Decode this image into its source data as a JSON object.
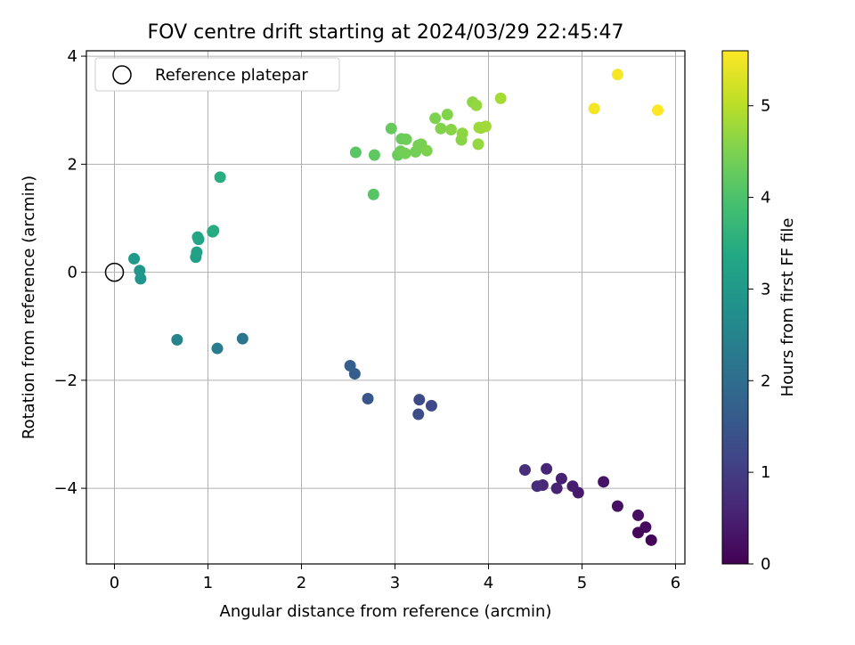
{
  "chart_data": {
    "type": "scatter",
    "title": "FOV centre drift starting at 2024/03/29 22:45:47",
    "xlabel": "Angular distance from reference (arcmin)",
    "ylabel": "Rotation from reference (arcmin)",
    "xlim": [
      -0.3,
      6.1
    ],
    "ylim": [
      -5.4,
      4.1
    ],
    "xticks": [
      0,
      1,
      2,
      3,
      4,
      5,
      6
    ],
    "yticks": [
      -4,
      -2,
      0,
      2,
      4
    ],
    "xtick_labels": [
      "0",
      "1",
      "2",
      "3",
      "4",
      "5",
      "6"
    ],
    "ytick_labels": [
      "−4",
      "−2",
      "0",
      "2",
      "4"
    ],
    "grid": true,
    "legend": {
      "placement": "top-left",
      "label": "Reference platepar"
    },
    "reference_point": {
      "x": 0,
      "y": 0
    },
    "colorbar": {
      "label": "Hours from first FF file",
      "colormap": "viridis",
      "range": [
        0,
        5.6
      ],
      "ticks": [
        0,
        1,
        2,
        3,
        4,
        5
      ],
      "tick_labels": [
        "0",
        "1",
        "2",
        "3",
        "4",
        "5"
      ]
    },
    "series": [
      {
        "points": [
          {
            "x": 5.74,
            "y": -4.96,
            "h": 0.05
          },
          {
            "x": 5.6,
            "y": -4.82,
            "h": 0.1
          },
          {
            "x": 5.68,
            "y": -4.72,
            "h": 0.15
          },
          {
            "x": 5.6,
            "y": -4.5,
            "h": 0.2
          },
          {
            "x": 5.38,
            "y": -4.33,
            "h": 0.25
          },
          {
            "x": 5.23,
            "y": -3.88,
            "h": 0.3
          },
          {
            "x": 4.96,
            "y": -4.08,
            "h": 0.4
          },
          {
            "x": 4.9,
            "y": -3.96,
            "h": 0.45
          },
          {
            "x": 4.78,
            "y": -3.82,
            "h": 0.5
          },
          {
            "x": 4.73,
            "y": -4.0,
            "h": 0.55
          },
          {
            "x": 4.62,
            "y": -3.64,
            "h": 0.6
          },
          {
            "x": 4.58,
            "y": -3.94,
            "h": 0.65
          },
          {
            "x": 4.52,
            "y": -3.96,
            "h": 0.7
          },
          {
            "x": 4.39,
            "y": -3.66,
            "h": 0.75
          },
          {
            "x": 3.39,
            "y": -2.47,
            "h": 1.2
          },
          {
            "x": 3.26,
            "y": -2.36,
            "h": 1.25
          },
          {
            "x": 3.25,
            "y": -2.63,
            "h": 1.3
          },
          {
            "x": 2.71,
            "y": -2.34,
            "h": 1.5
          },
          {
            "x": 2.57,
            "y": -1.88,
            "h": 1.65
          },
          {
            "x": 2.52,
            "y": -1.73,
            "h": 1.7
          },
          {
            "x": 1.37,
            "y": -1.23,
            "h": 2.2
          },
          {
            "x": 1.1,
            "y": -1.41,
            "h": 2.3
          },
          {
            "x": 0.67,
            "y": -1.25,
            "h": 2.5
          },
          {
            "x": 0.28,
            "y": -0.12,
            "h": 2.9
          },
          {
            "x": 0.27,
            "y": 0.03,
            "h": 2.95
          },
          {
            "x": 0.21,
            "y": 0.25,
            "h": 3.0
          },
          {
            "x": 0.87,
            "y": 0.28,
            "h": 3.15
          },
          {
            "x": 0.88,
            "y": 0.37,
            "h": 3.2
          },
          {
            "x": 0.9,
            "y": 0.61,
            "h": 3.25
          },
          {
            "x": 0.89,
            "y": 0.65,
            "h": 3.3
          },
          {
            "x": 1.05,
            "y": 0.75,
            "h": 3.4
          },
          {
            "x": 1.06,
            "y": 0.77,
            "h": 3.45
          },
          {
            "x": 1.13,
            "y": 1.76,
            "h": 3.5
          },
          {
            "x": 2.77,
            "y": 1.44,
            "h": 4.1
          },
          {
            "x": 2.58,
            "y": 2.22,
            "h": 4.15
          },
          {
            "x": 2.78,
            "y": 2.17,
            "h": 4.2
          },
          {
            "x": 2.96,
            "y": 2.66,
            "h": 4.25
          },
          {
            "x": 3.03,
            "y": 2.17,
            "h": 4.3
          },
          {
            "x": 3.07,
            "y": 2.47,
            "h": 4.3
          },
          {
            "x": 3.06,
            "y": 2.24,
            "h": 4.35
          },
          {
            "x": 3.12,
            "y": 2.46,
            "h": 4.35
          },
          {
            "x": 3.11,
            "y": 2.2,
            "h": 4.4
          },
          {
            "x": 3.22,
            "y": 2.23,
            "h": 4.4
          },
          {
            "x": 3.25,
            "y": 2.35,
            "h": 4.45
          },
          {
            "x": 3.28,
            "y": 2.37,
            "h": 4.45
          },
          {
            "x": 3.34,
            "y": 2.25,
            "h": 4.5
          },
          {
            "x": 3.43,
            "y": 2.85,
            "h": 4.5
          },
          {
            "x": 3.49,
            "y": 2.66,
            "h": 4.55
          },
          {
            "x": 3.56,
            "y": 2.92,
            "h": 4.55
          },
          {
            "x": 3.6,
            "y": 2.64,
            "h": 4.6
          },
          {
            "x": 3.71,
            "y": 2.45,
            "h": 4.6
          },
          {
            "x": 3.72,
            "y": 2.57,
            "h": 4.65
          },
          {
            "x": 3.83,
            "y": 3.15,
            "h": 4.65
          },
          {
            "x": 3.87,
            "y": 3.09,
            "h": 4.7
          },
          {
            "x": 3.89,
            "y": 2.37,
            "h": 4.7
          },
          {
            "x": 3.9,
            "y": 2.68,
            "h": 4.75
          },
          {
            "x": 3.92,
            "y": 2.67,
            "h": 4.75
          },
          {
            "x": 3.97,
            "y": 2.7,
            "h": 4.8
          },
          {
            "x": 4.13,
            "y": 3.22,
            "h": 4.85
          },
          {
            "x": 5.13,
            "y": 3.03,
            "h": 5.5
          },
          {
            "x": 5.38,
            "y": 3.66,
            "h": 5.55
          },
          {
            "x": 5.81,
            "y": 3.0,
            "h": 5.6
          }
        ]
      }
    ]
  }
}
